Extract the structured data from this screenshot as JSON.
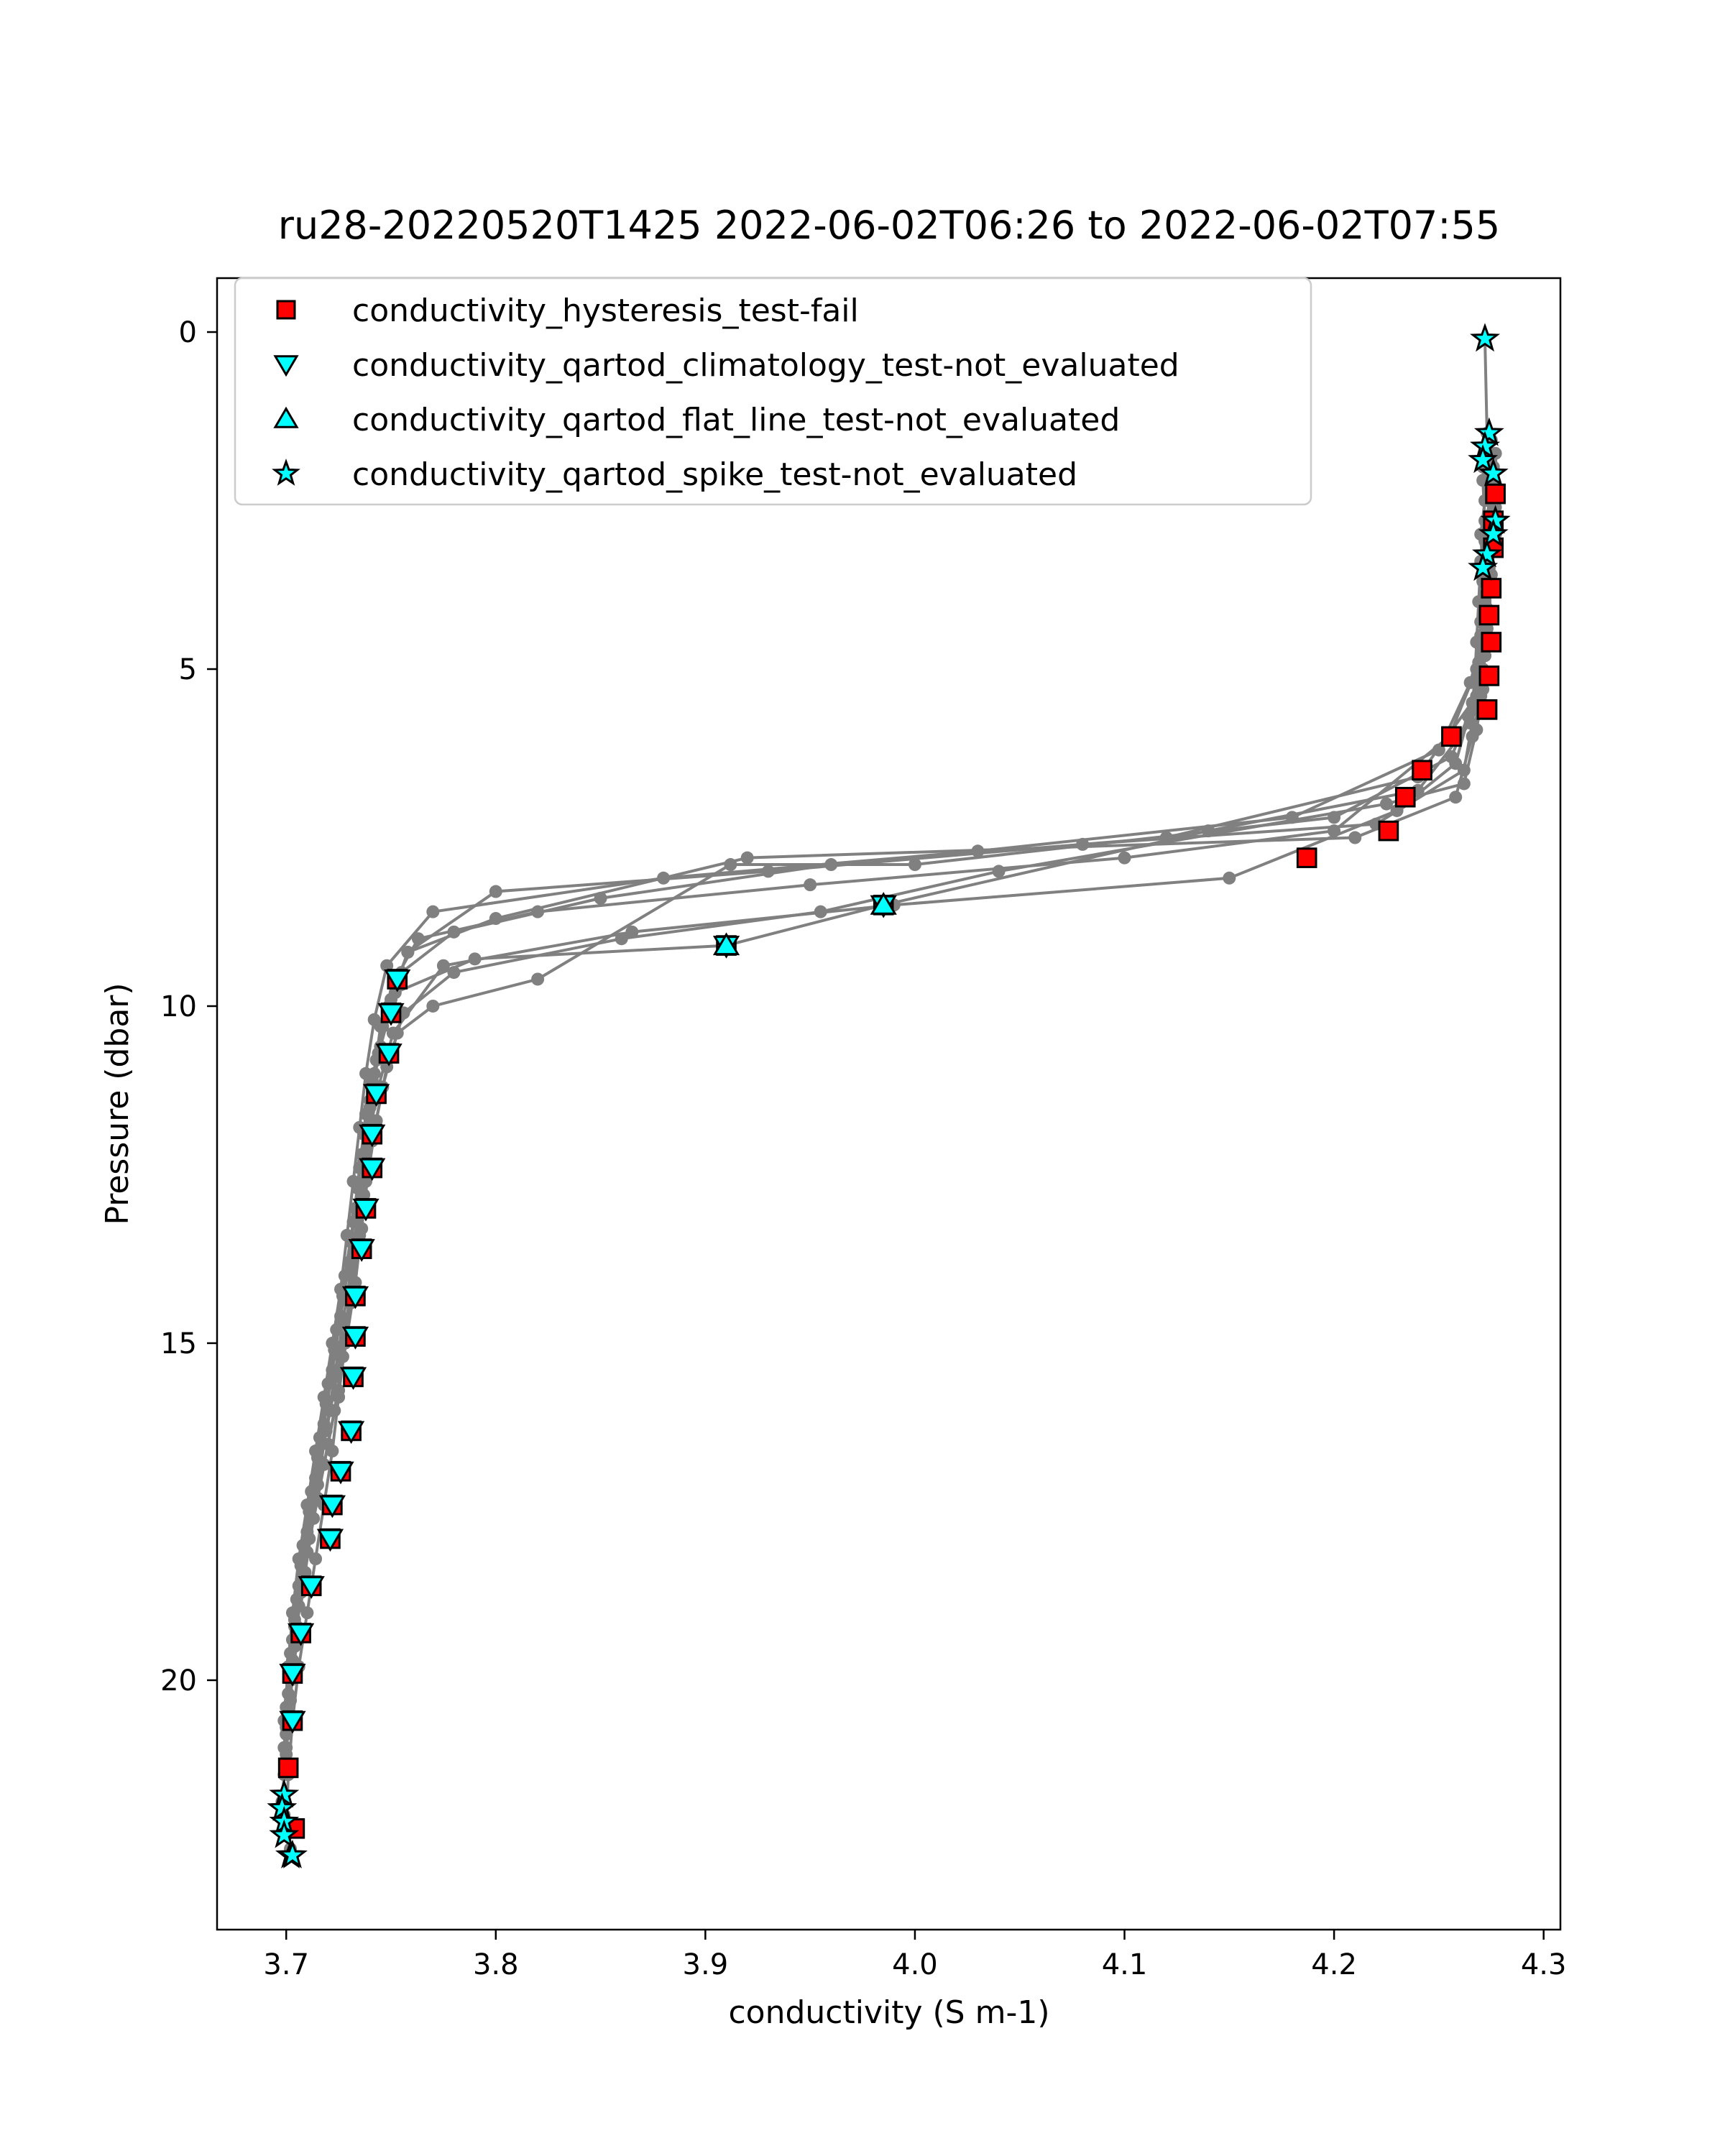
{
  "chart_data": {
    "type": "scatter",
    "title": "ru28-20220520T1425 2022-06-02T06:26 to 2022-06-02T07:55",
    "xlabel": "conductivity (S m-1)",
    "ylabel": "Pressure (dbar)",
    "xlim": [
      3.667,
      4.308
    ],
    "ylim": [
      23.7,
      -0.8
    ],
    "y_inverted": true,
    "x_ticks": [
      3.7,
      3.8,
      3.9,
      4.0,
      4.1,
      4.2,
      4.3
    ],
    "x_tick_labels": [
      "3.7",
      "3.8",
      "3.9",
      "4.0",
      "4.1",
      "4.2",
      "4.3"
    ],
    "y_ticks": [
      0,
      5,
      10,
      15,
      20
    ],
    "y_tick_labels": [
      "0",
      "5",
      "10",
      "15",
      "20"
    ],
    "grid": false,
    "legend_position": "top-left",
    "colors": {
      "profile_line": "#808080",
      "fail_marker": "#ff0000",
      "not_evaluated_marker": "#00ffff",
      "marker_edge": "#000000"
    },
    "profiles": [
      {
        "x": [
          4.272,
          4.273,
          4.271,
          4.272,
          4.27,
          4.271,
          4.272,
          4.27,
          4.268,
          4.255,
          4.2,
          4.1,
          3.95,
          3.82,
          3.763,
          3.752,
          3.745,
          3.742,
          3.74,
          3.738,
          3.735,
          3.732,
          3.728,
          3.725,
          3.722,
          3.718,
          3.714,
          3.71,
          3.706,
          3.703,
          3.701,
          3.7
        ],
        "y": [
          0.1,
          1.5,
          2.0,
          2.5,
          3.0,
          3.5,
          4.0,
          4.5,
          5.0,
          6.0,
          7.4,
          7.8,
          8.2,
          8.6,
          9.0,
          9.6,
          10.3,
          11.0,
          11.8,
          12.6,
          13.4,
          14.2,
          15.0,
          15.8,
          16.6,
          17.4,
          18.2,
          19.0,
          19.8,
          20.6,
          21.4,
          22.2
        ]
      },
      {
        "x": [
          4.275,
          4.276,
          4.274,
          4.273,
          4.272,
          4.27,
          4.265,
          4.25,
          4.18,
          4.03,
          3.88,
          3.77,
          3.748,
          3.742,
          3.738,
          3.735,
          3.732,
          3.729,
          3.726,
          3.722,
          3.718,
          3.714,
          3.71,
          3.706,
          3.703,
          3.701,
          3.699
        ],
        "y": [
          1.6,
          2.2,
          2.8,
          3.4,
          4.0,
          4.6,
          5.2,
          6.2,
          7.2,
          7.7,
          8.1,
          8.6,
          9.4,
          10.2,
          11.0,
          11.8,
          12.6,
          13.4,
          14.2,
          15.0,
          15.8,
          16.6,
          17.4,
          18.2,
          19.0,
          19.8,
          20.6
        ]
      },
      {
        "x": [
          4.277,
          4.278,
          4.276,
          4.275,
          4.274,
          4.272,
          4.268,
          4.24,
          4.12,
          3.96,
          3.85,
          3.78,
          3.755,
          3.746,
          3.741,
          3.737,
          3.734,
          3.731,
          3.727,
          3.723,
          3.719,
          3.715,
          3.711,
          3.707,
          3.704,
          3.702,
          3.7
        ],
        "y": [
          1.8,
          2.4,
          3.0,
          3.6,
          4.2,
          4.8,
          5.4,
          6.6,
          7.5,
          7.9,
          8.4,
          8.9,
          9.5,
          10.3,
          11.1,
          11.9,
          12.7,
          13.5,
          14.3,
          15.1,
          15.9,
          16.7,
          17.5,
          18.3,
          19.1,
          19.9,
          20.7
        ]
      },
      {
        "x": [
          4.273,
          4.274,
          4.272,
          4.271,
          4.27,
          4.269,
          4.266,
          4.258,
          4.23,
          4.15,
          3.99,
          3.865,
          3.775,
          3.751,
          3.744,
          3.739,
          3.736,
          3.733,
          3.73,
          3.726,
          3.721,
          3.716,
          3.712,
          3.708,
          3.704,
          3.702,
          3.7
        ],
        "y": [
          1.9,
          2.5,
          3.1,
          3.7,
          4.3,
          4.9,
          5.5,
          6.4,
          7.1,
          8.1,
          8.5,
          8.9,
          9.4,
          10.4,
          11.2,
          12.0,
          12.8,
          13.6,
          14.4,
          15.2,
          16.0,
          16.8,
          17.6,
          18.4,
          19.2,
          20.0,
          20.8
        ]
      },
      {
        "x": [
          4.276,
          4.277,
          4.275,
          4.274,
          4.273,
          4.271,
          4.267,
          4.262,
          4.22,
          4.08,
          3.93,
          3.8,
          3.758,
          3.749,
          3.743,
          3.738,
          3.735,
          3.732,
          3.728,
          3.724,
          3.72,
          3.716,
          3.712,
          3.708,
          3.705,
          3.702,
          3.7
        ],
        "y": [
          2.0,
          2.6,
          3.2,
          3.8,
          4.4,
          5.0,
          5.6,
          6.5,
          7.3,
          7.6,
          8.0,
          8.3,
          9.2,
          10.0,
          10.8,
          11.6,
          12.4,
          13.2,
          14.0,
          14.8,
          15.6,
          16.4,
          17.2,
          18.0,
          18.8,
          19.6,
          20.4
        ]
      },
      {
        "x": [
          4.274,
          4.275,
          4.273,
          4.272,
          4.271,
          4.269,
          4.264,
          4.256,
          4.2,
          4.0,
          3.912,
          3.82,
          3.77,
          3.753,
          3.746,
          3.741,
          3.737,
          3.734,
          3.731,
          3.727,
          3.723,
          3.718,
          3.713,
          3.709,
          3.705,
          3.702,
          3.7
        ],
        "y": [
          2.1,
          2.7,
          3.3,
          3.9,
          4.5,
          5.1,
          5.7,
          6.3,
          7.2,
          7.9,
          7.9,
          9.6,
          10.0,
          10.4,
          11.2,
          12.0,
          12.8,
          13.6,
          14.4,
          15.2,
          16.0,
          16.8,
          17.6,
          18.4,
          19.2,
          20.0,
          20.8
        ]
      },
      {
        "x": [
          4.271,
          4.272,
          4.27,
          4.269,
          4.268,
          4.267,
          4.265,
          4.24,
          4.14,
          3.985,
          3.91,
          3.79,
          3.752,
          3.745,
          3.74,
          3.736,
          3.733,
          3.73,
          3.726,
          3.722,
          3.718,
          3.714,
          3.71,
          3.706,
          3.703,
          3.701,
          3.699
        ],
        "y": [
          2.2,
          2.8,
          3.4,
          4.0,
          4.6,
          5.2,
          5.8,
          6.8,
          7.4,
          8.5,
          9.1,
          9.3,
          9.8,
          10.6,
          11.4,
          12.2,
          13.0,
          13.8,
          14.6,
          15.4,
          16.2,
          17.0,
          17.8,
          18.6,
          19.4,
          20.2,
          21.0
        ]
      },
      {
        "x": [
          4.276,
          4.276,
          4.274,
          4.273,
          4.272,
          4.271,
          4.268,
          4.262,
          4.225,
          4.04,
          3.955,
          3.86,
          3.78,
          3.756,
          3.748,
          3.743,
          3.739,
          3.736,
          3.733,
          3.729,
          3.725,
          3.72,
          3.715,
          3.71,
          3.706,
          3.703,
          3.701
        ],
        "y": [
          2.3,
          2.9,
          3.5,
          4.1,
          4.7,
          5.3,
          5.9,
          6.7,
          7.0,
          8.0,
          8.6,
          9.0,
          9.5,
          10.1,
          10.9,
          11.7,
          12.5,
          13.3,
          14.1,
          14.9,
          15.7,
          16.5,
          17.3,
          18.1,
          18.9,
          19.7,
          20.5
        ]
      },
      {
        "x": [
          4.277,
          4.277,
          4.275,
          4.273,
          4.272,
          4.27,
          4.266,
          4.258,
          4.21,
          3.92,
          3.8,
          3.758,
          3.75,
          3.744,
          3.74,
          3.737,
          3.734,
          3.731,
          3.727,
          3.723,
          3.719,
          3.715,
          3.711,
          3.707,
          3.704,
          3.702,
          3.7
        ],
        "y": [
          2.4,
          3.0,
          3.6,
          4.2,
          4.8,
          5.4,
          6.0,
          6.9,
          7.5,
          7.8,
          8.7,
          9.2,
          9.9,
          10.7,
          11.5,
          12.3,
          13.1,
          13.9,
          14.7,
          15.5,
          16.3,
          17.1,
          17.9,
          18.7,
          19.5,
          20.3,
          21.1
        ]
      },
      {
        "x": [
          3.7,
          3.699,
          3.698,
          3.699,
          3.7,
          3.702,
          3.703,
          3.702
        ],
        "y": [
          21.0,
          21.4,
          21.8,
          22.0,
          22.3,
          22.5,
          22.6,
          22.6
        ]
      }
    ],
    "series": [
      {
        "name": "conductivity_hysteresis_test-fail",
        "marker": "square",
        "color": "#ff0000",
        "x": [
          4.277,
          4.276,
          4.276,
          4.275,
          4.274,
          4.275,
          4.274,
          4.273,
          4.273,
          4.256,
          4.242,
          4.234,
          4.226,
          4.187,
          3.985,
          3.91,
          3.753,
          3.75,
          3.749,
          3.743,
          3.741,
          3.741,
          3.738,
          3.736,
          3.733,
          3.733,
          3.732,
          3.731,
          3.726,
          3.722,
          3.721,
          3.712,
          3.707,
          3.703,
          3.703,
          3.701,
          3.704
        ],
        "y": [
          2.4,
          2.8,
          3.2,
          3.8,
          4.2,
          4.6,
          5.1,
          5.6,
          5.6,
          6.0,
          6.5,
          6.9,
          7.4,
          7.8,
          8.5,
          9.1,
          9.6,
          10.1,
          10.7,
          11.3,
          11.9,
          12.4,
          13.0,
          13.6,
          14.3,
          14.9,
          15.5,
          16.3,
          16.9,
          17.4,
          17.9,
          18.6,
          19.3,
          19.9,
          20.6,
          21.3,
          22.2
        ]
      },
      {
        "name": "conductivity_qartod_climatology_test-not_evaluated",
        "marker": "triangle-down",
        "color": "#00ffff",
        "x": [
          3.985,
          3.91,
          3.753,
          3.75,
          3.749,
          3.743,
          3.741,
          3.741,
          3.738,
          3.736,
          3.733,
          3.733,
          3.732,
          3.731,
          3.726,
          3.722,
          3.721,
          3.712,
          3.707,
          3.703,
          3.703
        ],
        "y": [
          8.5,
          9.1,
          9.6,
          10.1,
          10.7,
          11.3,
          11.9,
          12.4,
          13.0,
          13.6,
          14.3,
          14.9,
          15.5,
          16.3,
          16.9,
          17.4,
          17.9,
          18.6,
          19.3,
          19.9,
          20.6
        ]
      },
      {
        "name": "conductivity_qartod_flat_line_test-not_evaluated",
        "marker": "triangle-up",
        "color": "#00ffff",
        "x": [
          3.985,
          3.91
        ],
        "y": [
          8.5,
          9.1
        ]
      },
      {
        "name": "conductivity_qartod_spike_test-not_evaluated",
        "marker": "star",
        "color": "#00ffff",
        "x": [
          4.272,
          4.274,
          4.272,
          4.271,
          4.276,
          4.277,
          4.276,
          4.273,
          4.271,
          3.699,
          3.698,
          3.699,
          3.699,
          3.702,
          3.703
        ],
        "y": [
          0.1,
          1.5,
          1.7,
          1.9,
          2.1,
          2.8,
          3.0,
          3.3,
          3.5,
          21.7,
          21.9,
          22.1,
          22.3,
          22.6,
          22.6
        ]
      }
    ]
  }
}
